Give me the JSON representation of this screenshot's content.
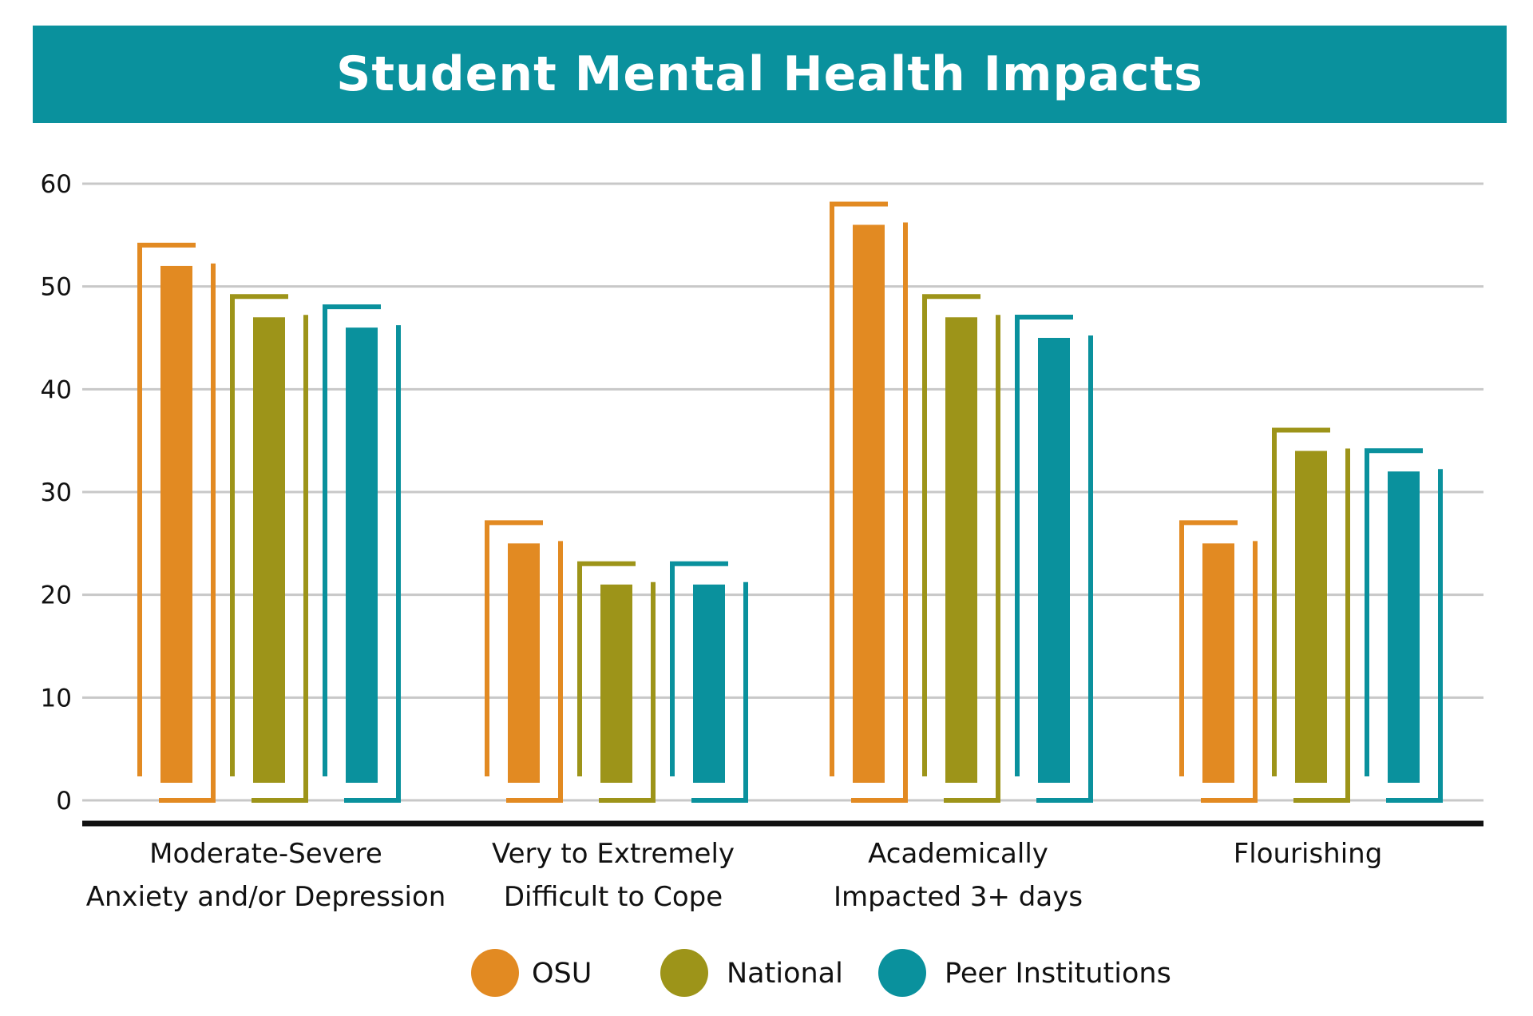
{
  "chart_data": {
    "type": "bar",
    "title": "Student Mental Health Impacts",
    "categories": [
      [
        "Moderate-Severe",
        "Anxiety and/or Depression"
      ],
      [
        "Very to Extremely",
        "Difficult to Cope"
      ],
      [
        "Academically",
        "Impacted 3+ days"
      ],
      [
        "Flourishing"
      ]
    ],
    "series": [
      {
        "name": "OSU",
        "color": "#e28a22",
        "values": [
          52,
          25,
          56,
          25
        ]
      },
      {
        "name": "National",
        "color": "#9d9419",
        "values": [
          47,
          21,
          47,
          34
        ]
      },
      {
        "name": "Peer Institutions",
        "color": "#0a919d",
        "values": [
          46,
          21,
          45,
          32
        ]
      }
    ],
    "yticks": [
      0,
      10,
      20,
      30,
      40,
      50,
      60
    ],
    "ylim": [
      0,
      60
    ],
    "xlabel": "",
    "ylabel": "",
    "grid": true,
    "legend_position": "bottom"
  }
}
